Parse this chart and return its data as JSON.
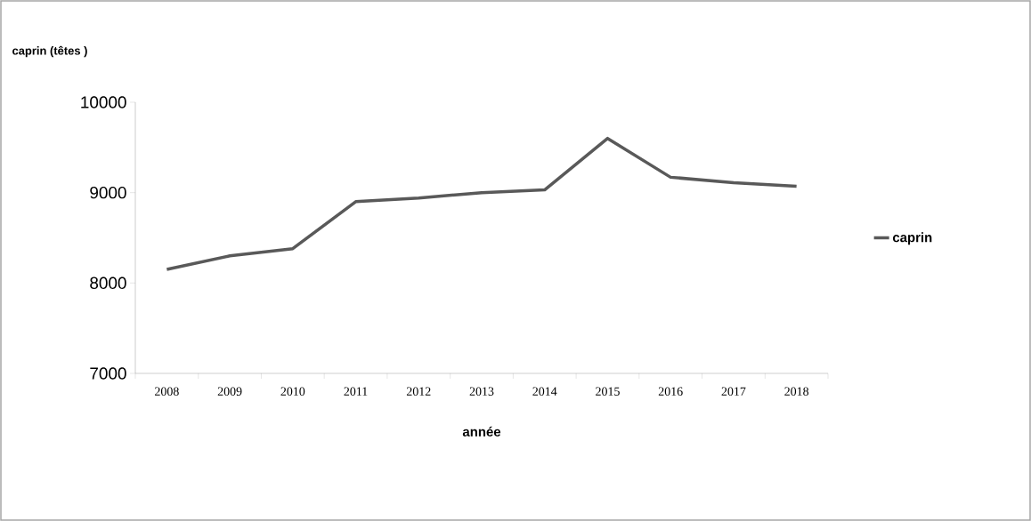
{
  "chart_data": {
    "type": "line",
    "ylabel": "caprin (têtes )",
    "xlabel": "année",
    "categories": [
      "2008",
      "2009",
      "2010",
      "2011",
      "2012",
      "2013",
      "2014",
      "2015",
      "2016",
      "2017",
      "2018"
    ],
    "series": [
      {
        "name": "caprin",
        "color": "#595959",
        "values": [
          8150,
          8300,
          8380,
          8900,
          8940,
          9000,
          9030,
          9600,
          9170,
          9110,
          9070
        ]
      }
    ],
    "ylim": [
      7000,
      10000
    ],
    "yticks": [
      7000,
      8000,
      9000,
      10000
    ],
    "grid": false,
    "legend": "right",
    "marker": "none",
    "line_style": "solid"
  }
}
